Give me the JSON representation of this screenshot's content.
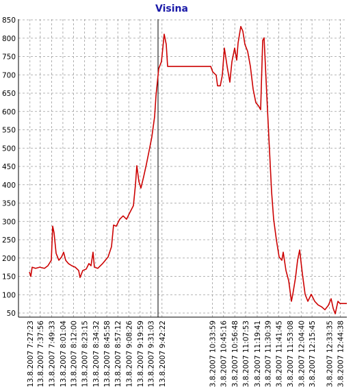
{
  "chart_data": {
    "type": "line",
    "title": "Visina",
    "color": "#cc0000",
    "grid": true,
    "ylim": [
      50,
      850
    ],
    "yticks": [
      50,
      100,
      150,
      200,
      250,
      300,
      350,
      400,
      450,
      500,
      550,
      600,
      650,
      700,
      750,
      800,
      850
    ],
    "xlim": [
      "13.8.2007 7:15:40",
      "13.8.2007 12:51:20"
    ],
    "xticks": [
      "13.8.2007 7:27:23",
      "13.8.2007 7:37:56",
      "13.8.2007 7:49:33",
      "13.8.2007 8:01:04",
      "13.8.2007 8:12:00",
      "13.8.2007 8:23:15",
      "13.8.2007 8:34:32",
      "13.8.2007 8:45:58",
      "13.8.2007 8:57:12",
      "13.8.2007 9:08:26",
      "13.8.2007 9:19:59",
      "13.8.2007 9:31:03",
      "13.8.2007 9:42:22",
      "13.8.2007 10:33:59",
      "13.8.2007 10:45:16",
      "13.8.2007 10:56:48",
      "13.8.2007 11:07:53",
      "13.8.2007 11:19:41",
      "13.8.2007 11:30:39",
      "13.8.2007 11:41:45",
      "13.8.2007 11:53:08",
      "13.8.2007 12:04:40",
      "13.8.2007 12:15:45",
      "13.8.2007 12:33:35",
      "13.8.2007 12:44:38"
    ],
    "x": [
      "13.8.2007 7:26:51",
      "13.8.2007 7:28:15",
      "13.8.2007 7:29:39",
      "13.8.2007 7:33:09",
      "13.8.2007 7:37:21",
      "13.8.2007 7:42:14",
      "13.8.2007 7:45:44",
      "13.8.2007 7:49:14",
      "13.8.2007 7:50:38",
      "13.8.2007 7:52:02",
      "13.8.2007 7:54:08",
      "13.8.2007 7:56:56",
      "13.8.2007 7:59:44",
      "13.8.2007 8:01:49",
      "13.8.2007 8:03:55",
      "13.8.2007 8:06:43",
      "13.8.2007 8:10:13",
      "13.8.2007 8:13:42",
      "13.8.2007 8:17:12",
      "13.8.2007 8:18:36",
      "13.8.2007 8:21:24",
      "13.8.2007 8:24:54",
      "13.8.2007 8:27:42",
      "13.8.2007 8:29:48",
      "13.8.2007 8:31:53",
      "13.8.2007 8:33:17",
      "13.8.2007 8:36:47",
      "13.8.2007 8:41:41",
      "13.8.2007 8:47:17",
      "13.8.2007 8:50:46",
      "13.8.2007 8:52:52",
      "13.8.2007 8:55:40",
      "13.8.2007 8:59:10",
      "13.8.2007 9:02:39",
      "13.8.2007 9:06:09",
      "13.8.2007 9:09:39",
      "13.8.2007 9:13:09",
      "13.8.2007 9:15:15",
      "13.8.2007 9:16:39",
      "13.8.2007 9:18:45",
      "13.8.2007 9:20:50",
      "13.8.2007 9:23:38",
      "13.8.2007 9:26:26",
      "13.8.2007 9:29:14",
      "13.8.2007 9:31:58",
      "13.8.2007 9:34:50",
      "13.8.2007 9:36:14",
      "13.8.2007 9:39:02",
      "13.8.2007 9:41:49",
      "13.8.2007 9:43:13",
      "13.8.2007 9:44:37",
      "13.8.2007 9:46:43",
      "13.8.2007 9:48:07",
      "13.8.2007 9:51:36",
      "13.8.2007 10:05:36",
      "13.8.2007 10:23:05",
      "13.8.2007 10:32:10",
      "13.8.2007 10:34:16",
      "13.8.2007 10:37:46",
      "13.8.2007 10:39:10",
      "13.8.2007 10:41:57",
      "13.8.2007 10:44:03",
      "13.8.2007 10:46:09",
      "13.8.2007 10:48:57",
      "13.8.2007 10:51:45",
      "13.8.2007 10:53:51",
      "13.8.2007 10:56:39",
      "13.8.2007 10:58:45",
      "13.8.2007 11:00:09",
      "13.8.2007 11:02:56",
      "13.8.2007 11:05:02",
      "13.8.2007 11:07:08",
      "13.8.2007 11:09:56",
      "13.8.2007 11:12:44",
      "13.8.2007 11:15:32",
      "13.8.2007 11:18:20",
      "13.8.2007 11:21:07",
      "13.8.2007 11:23:13",
      "13.8.2007 11:25:19",
      "13.8.2007 11:26:43",
      "13.8.2007 11:28:07",
      "13.8.2007 11:30:13",
      "13.8.2007 11:32:18",
      "13.8.2007 11:34:24",
      "13.8.2007 11:36:30",
      "13.8.2007 11:39:18",
      "13.8.2007 11:42:06",
      "13.8.2007 11:44:54",
      "13.8.2007 11:46:18",
      "13.8.2007 11:49:06",
      "13.8.2007 11:51:53",
      "13.8.2007 11:54:41",
      "13.8.2007 11:56:05",
      "13.8.2007 11:58:53",
      "13.8.2007 12:00:59",
      "13.8.2007 12:03:05",
      "13.8.2007 12:05:53",
      "13.8.2007 12:08:41",
      "13.8.2007 12:11:28",
      "13.8.2007 12:14:58",
      "13.8.2007 12:18:28",
      "13.8.2007 12:21:57",
      "13.8.2007 12:25:27",
      "13.8.2007 12:28:57",
      "13.8.2007 12:32:27",
      "13.8.2007 12:35:15",
      "13.8.2007 12:37:21",
      "13.8.2007 12:39:27",
      "13.8.2007 12:42:14",
      "13.8.2007 12:44:20",
      "13.8.2007 12:46:26",
      "13.8.2007 12:51:20"
    ],
    "values": [
      162,
      150,
      175,
      172,
      175,
      172,
      179,
      194,
      287,
      269,
      213,
      194,
      203,
      216,
      194,
      185,
      179,
      175,
      166,
      147,
      166,
      170,
      185,
      179,
      216,
      175,
      172,
      185,
      203,
      231,
      290,
      287,
      306,
      315,
      306,
      325,
      343,
      400,
      452,
      409,
      391,
      422,
      456,
      493,
      530,
      586,
      643,
      717,
      736,
      773,
      811,
      783,
      723,
      723,
      723,
      723,
      723,
      708,
      699,
      670,
      670,
      699,
      773,
      723,
      680,
      736,
      773,
      740,
      787,
      832,
      819,
      783,
      764,
      723,
      661,
      624,
      615,
      605,
      794,
      801,
      723,
      605,
      493,
      381,
      306,
      250,
      203,
      194,
      216,
      166,
      138,
      82,
      101,
      147,
      194,
      222,
      157,
      101,
      82,
      101,
      82,
      72,
      67,
      59,
      71,
      89,
      63,
      48,
      82,
      76,
      76,
      76
    ]
  }
}
